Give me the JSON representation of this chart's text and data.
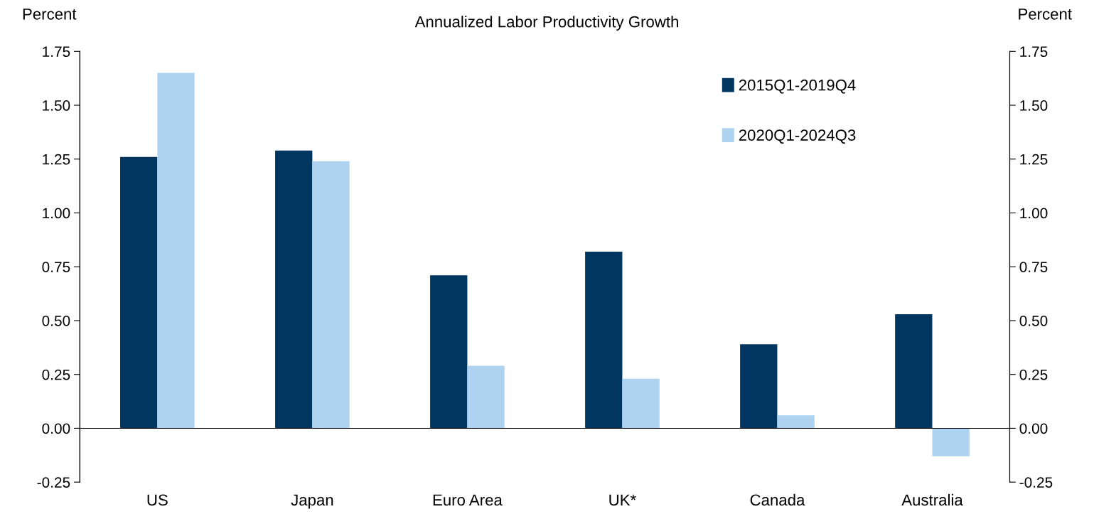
{
  "chart_data": {
    "type": "bar",
    "title": "Annualized Labor Productivity Growth",
    "ylabel": "Percent",
    "y2label": "Percent",
    "categories": [
      "US",
      "Japan",
      "Euro Area",
      "UK*",
      "Canada",
      "Australia"
    ],
    "series": [
      {
        "name": "2015Q1-2019Q4",
        "color": "#003660",
        "values": [
          1.26,
          1.29,
          0.71,
          0.82,
          0.39,
          0.53
        ]
      },
      {
        "name": "2020Q1-2024Q3",
        "color": "#aed3f0",
        "values": [
          1.65,
          1.24,
          0.29,
          0.23,
          0.06,
          -0.13
        ]
      }
    ],
    "ylim": [
      -0.25,
      1.75
    ],
    "yticks": [
      {
        "value": -0.25,
        "label": "-0.25"
      },
      {
        "value": 0,
        "label": "0.00"
      },
      {
        "value": 0.25,
        "label": "0.25"
      },
      {
        "value": 0.5,
        "label": "0.50"
      },
      {
        "value": 0.75,
        "label": "0.75"
      },
      {
        "value": 1,
        "label": "1.00"
      },
      {
        "value": 1.25,
        "label": "1.25"
      },
      {
        "value": 1.5,
        "label": "1.50"
      },
      {
        "value": 1.75,
        "label": "1.75"
      }
    ],
    "y2lim": [
      -0.25,
      1.75
    ],
    "y2ticks": [
      {
        "value": -0.25,
        "label": "-0.25"
      },
      {
        "value": 0,
        "label": "0.00"
      },
      {
        "value": 0.25,
        "label": "0.25"
      },
      {
        "value": 0.5,
        "label": "0.50"
      },
      {
        "value": 0.75,
        "label": "0.75"
      },
      {
        "value": 1,
        "label": "1.00"
      },
      {
        "value": 1.25,
        "label": "1.25"
      },
      {
        "value": 1.5,
        "label": "1.50"
      },
      {
        "value": 1.75,
        "label": "1.75"
      }
    ],
    "legend": "top right"
  }
}
